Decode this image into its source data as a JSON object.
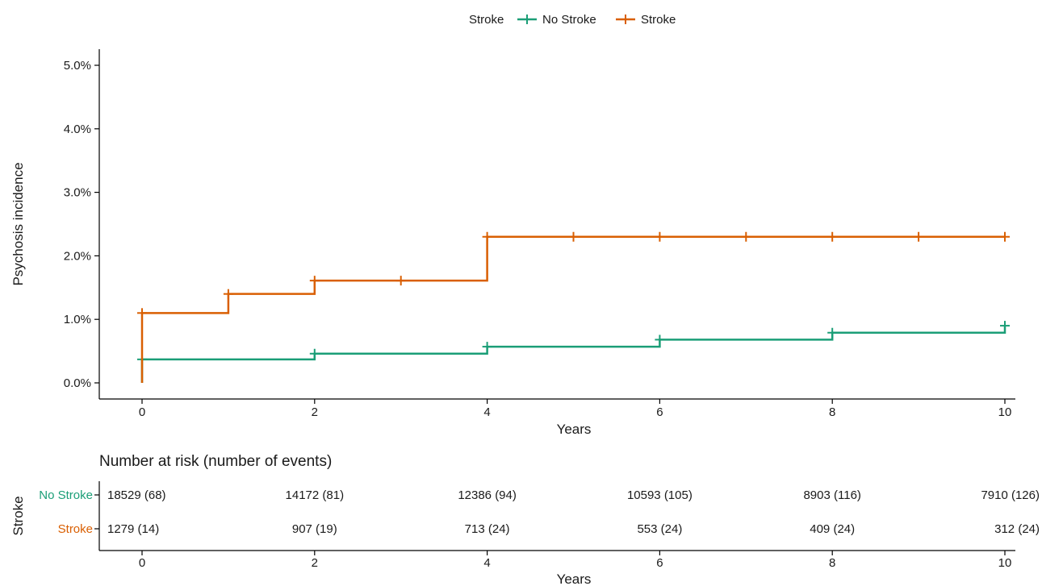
{
  "legend": {
    "title": "Stroke",
    "items": [
      {
        "label": "No Stroke",
        "color": "#1b9e77"
      },
      {
        "label": "Stroke",
        "color": "#d95f02"
      }
    ]
  },
  "chart_data": [
    {
      "type": "line",
      "step": true,
      "title": "",
      "xlabel": "Years",
      "ylabel": "Psychosis incidence",
      "xlim": [
        0,
        10
      ],
      "ylim": [
        0,
        0.05
      ],
      "x_ticks": [
        0,
        2,
        4,
        6,
        8,
        10
      ],
      "y_ticks": [
        0,
        0.01,
        0.02,
        0.03,
        0.04,
        0.05
      ],
      "y_tick_labels": [
        "0.0%",
        "1.0%",
        "2.0%",
        "3.0%",
        "4.0%",
        "5.0%"
      ],
      "grid": false,
      "legend_position": "top",
      "series": [
        {
          "name": "No Stroke",
          "color": "#1b9e77",
          "steps": [
            {
              "x": 0,
              "y": 0.0037
            },
            {
              "x": 2,
              "y": 0.0046
            },
            {
              "x": 4,
              "y": 0.0057
            },
            {
              "x": 6,
              "y": 0.0068
            },
            {
              "x": 8,
              "y": 0.0079
            },
            {
              "x": 10,
              "y": 0.009
            }
          ],
          "censor_marks": [
            {
              "x": 0,
              "y": 0.0037
            },
            {
              "x": 2,
              "y": 0.0046
            },
            {
              "x": 4,
              "y": 0.0057
            },
            {
              "x": 6,
              "y": 0.0068
            },
            {
              "x": 8,
              "y": 0.0079
            },
            {
              "x": 10,
              "y": 0.009
            }
          ]
        },
        {
          "name": "Stroke",
          "color": "#d95f02",
          "steps": [
            {
              "x": 0,
              "y": 0.011
            },
            {
              "x": 1,
              "y": 0.014
            },
            {
              "x": 2,
              "y": 0.0161
            },
            {
              "x": 4,
              "y": 0.023
            }
          ],
          "censor_marks": [
            {
              "x": 0,
              "y": 0.011
            },
            {
              "x": 1,
              "y": 0.014
            },
            {
              "x": 2,
              "y": 0.0161
            },
            {
              "x": 3,
              "y": 0.0161
            },
            {
              "x": 4,
              "y": 0.023
            },
            {
              "x": 5,
              "y": 0.023
            },
            {
              "x": 6,
              "y": 0.023
            },
            {
              "x": 7,
              "y": 0.023
            },
            {
              "x": 8,
              "y": 0.023
            },
            {
              "x": 9,
              "y": 0.023
            },
            {
              "x": 10,
              "y": 0.023
            }
          ]
        }
      ]
    },
    {
      "type": "table",
      "title": "Number at risk (number of events)",
      "xlabel": "Years",
      "ylabel": "Stroke",
      "x_ticks": [
        0,
        2,
        4,
        6,
        8,
        10
      ],
      "rows": [
        {
          "name": "No Stroke",
          "color": "#1b9e77",
          "values": [
            "18529 (68)",
            "14172 (81)",
            "12386 (94)",
            "10593 (105)",
            "8903 (116)",
            "7910 (126)"
          ]
        },
        {
          "name": "Stroke",
          "color": "#d95f02",
          "values": [
            "1279 (14)",
            "907 (19)",
            "713 (24)",
            "553 (24)",
            "409 (24)",
            "312 (24)"
          ]
        }
      ]
    }
  ]
}
